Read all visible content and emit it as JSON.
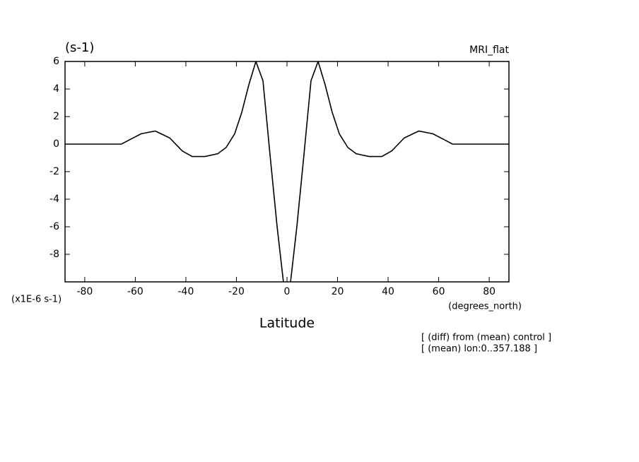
{
  "chart_data": {
    "type": "line",
    "title": "(s-1)",
    "subtitle": "MRI_flat",
    "y_label": "(x1E-6 s-1)",
    "x_unit": "(degrees_north)",
    "x_label": "Latitude",
    "annotations": [
      "[ (diff) from (mean) control ]",
      "[ (mean) lon:0..357.188 ]"
    ],
    "x": [
      -87.8,
      -75.8,
      -65.5,
      -61.9,
      -57.7,
      -52.1,
      -46.4,
      -41.4,
      -37.5,
      -32.5,
      -27.4,
      -24.1,
      -20.7,
      -17.9,
      -15.1,
      -12.3,
      -9.5,
      -6.7,
      -3.9,
      -1.1,
      1.1,
      3.9,
      6.7,
      9.5,
      12.3,
      15.1,
      17.9,
      20.7,
      24.1,
      27.4,
      32.5,
      37.5,
      41.4,
      46.4,
      52.1,
      57.7,
      61.9,
      65.5,
      75.8,
      87.8
    ],
    "series": [
      {
        "color": "#000000",
        "values": [
          0,
          0,
          0,
          0.35,
          0.75,
          0.95,
          0.45,
          -0.5,
          -0.9,
          -0.9,
          -0.7,
          -0.25,
          0.75,
          2.3,
          4.3,
          6.0,
          4.6,
          -0.8,
          -6.0,
          -10.5,
          -10.5,
          -6.0,
          -0.8,
          4.6,
          6.0,
          4.3,
          2.3,
          0.75,
          -0.25,
          -0.7,
          -0.9,
          -0.9,
          -0.5,
          0.45,
          0.95,
          0.75,
          0.35,
          0,
          0,
          0
        ]
      }
    ],
    "xlim": [
      -87.8,
      87.8
    ],
    "ylim": [
      -10,
      6
    ],
    "xticks": [
      -80,
      -60,
      -40,
      -20,
      0,
      20,
      40,
      60,
      80
    ],
    "yticks": [
      -8,
      -6,
      -4,
      -2,
      0,
      2,
      4,
      6
    ]
  }
}
